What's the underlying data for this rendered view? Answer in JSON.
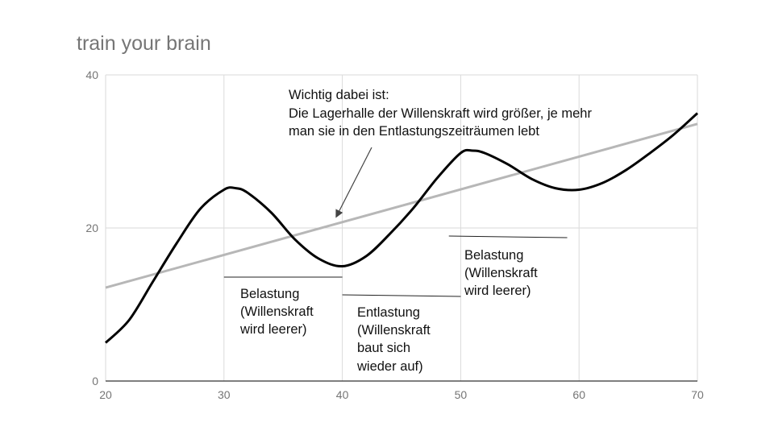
{
  "chart_data": {
    "type": "line",
    "title": "train your brain",
    "xlabel": "",
    "ylabel": "",
    "xlim": [
      20,
      70
    ],
    "ylim": [
      0,
      40
    ],
    "x_ticks": [
      "20",
      "30",
      "40",
      "50",
      "60",
      "70"
    ],
    "y_ticks": [
      "0",
      "20",
      "40"
    ],
    "grid": true,
    "colors": {
      "curve": "#000000",
      "trend": "#b7b7b7",
      "grid": "#dadada",
      "axis": "#333333"
    },
    "series": [
      {
        "x": [
          20,
          22,
          24,
          26,
          28,
          30,
          31,
          32,
          34,
          36,
          38,
          40,
          42,
          44,
          46,
          48,
          50,
          51,
          52,
          54,
          56,
          58,
          60,
          62,
          64,
          66,
          68,
          70
        ],
        "values": [
          5,
          8,
          13,
          18,
          22.5,
          25,
          25.2,
          24.6,
          22,
          18.5,
          16,
          15,
          16.3,
          19.2,
          22.6,
          26.5,
          29.8,
          30.1,
          29.8,
          28.3,
          26.4,
          25.2,
          25,
          25.9,
          27.6,
          29.8,
          32.2,
          35
        ]
      },
      {
        "x": [
          20,
          70
        ],
        "values": [
          12.2,
          33.6
        ]
      }
    ],
    "annotations": [
      {
        "lines": [
          "Wichtig dabei ist:",
          "Die Lagerhalle der Willenskraft wird größer, je mehr",
          "man sie in den Entlastungszeiträumen lebt"
        ],
        "arrow_to": [
          39.5,
          21.5
        ]
      },
      {
        "lines": [
          "Belastung",
          "(Willenskraft",
          "wird leerer)"
        ],
        "range": [
          30,
          40
        ]
      },
      {
        "lines": [
          "Entlastung",
          "(Willenskraft",
          "baut sich",
          "wieder auf)"
        ],
        "range": [
          40,
          50
        ]
      },
      {
        "lines": [
          "Belastung",
          "(Willenskraft",
          "wird leerer)"
        ],
        "range": [
          49,
          59
        ]
      }
    ]
  }
}
